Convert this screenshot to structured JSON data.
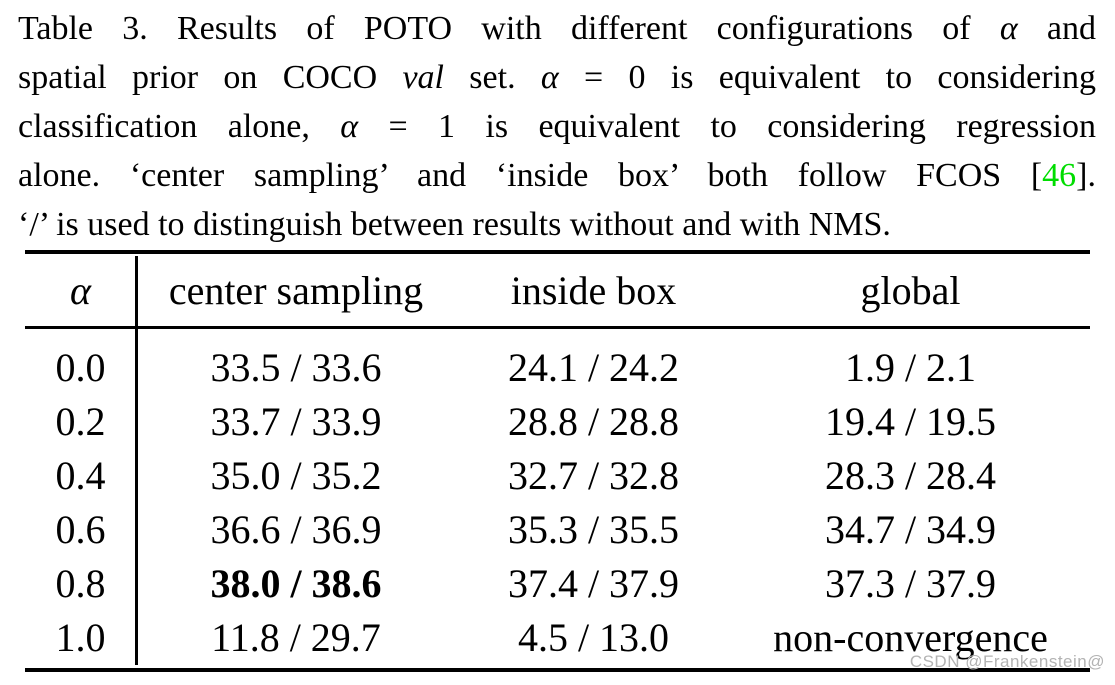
{
  "colors": {
    "citation_green": "#00dd00",
    "watermark_gray": "#b3b3b3",
    "ink": "#000000",
    "background": "#ffffff"
  },
  "caption": {
    "lines": [
      {
        "segments": [
          {
            "t": "Table 3. Results of POTO with different configurations of "
          },
          {
            "t": "α",
            "s": "math"
          },
          {
            "t": " and"
          }
        ]
      },
      {
        "segments": [
          {
            "t": "spatial prior on COCO "
          },
          {
            "t": "val",
            "s": "italic"
          },
          {
            "t": " set. "
          },
          {
            "t": "α",
            "s": "math"
          },
          {
            "t": " = 0 is equivalent to considering"
          }
        ]
      },
      {
        "segments": [
          {
            "t": "classification alone, "
          },
          {
            "t": "α",
            "s": "math"
          },
          {
            "t": " = 1 is equivalent to considering regression"
          }
        ]
      },
      {
        "segments": [
          {
            "t": "alone. ‘center sampling’ and ‘inside box’ both follow FCOS ["
          },
          {
            "t": "46",
            "s": "green"
          },
          {
            "t": "]."
          }
        ]
      },
      {
        "segments": [
          {
            "t": "‘/’ is used to distinguish between results without and with NMS."
          }
        ]
      }
    ]
  },
  "table": {
    "columns": [
      {
        "label": "α",
        "math": true
      },
      {
        "label": "center sampling"
      },
      {
        "label": "inside box"
      },
      {
        "label": "global"
      }
    ],
    "rows": [
      {
        "values": [
          "0.0",
          "33.5 / 33.6",
          "24.1 / 24.2",
          "1.9 / 2.1"
        ],
        "bold_index": -1
      },
      {
        "values": [
          "0.2",
          "33.7 / 33.9",
          "28.8 / 28.8",
          "19.4 / 19.5"
        ],
        "bold_index": -1
      },
      {
        "values": [
          "0.4",
          "35.0 / 35.2",
          "32.7 / 32.8",
          "28.3 / 28.4"
        ],
        "bold_index": -1
      },
      {
        "values": [
          "0.6",
          "36.6 / 36.9",
          "35.3 / 35.5",
          "34.7 / 34.9"
        ],
        "bold_index": -1
      },
      {
        "values": [
          "0.8",
          "38.0 / 38.6",
          "37.4 / 37.9",
          "37.3 / 37.9"
        ],
        "bold_index": 1
      },
      {
        "values": [
          "1.0",
          "11.8 / 29.7",
          "4.5 / 13.0",
          "non-convergence"
        ],
        "bold_index": -1
      }
    ]
  },
  "watermark": {
    "text": "CSDN @Frankenstein@"
  }
}
